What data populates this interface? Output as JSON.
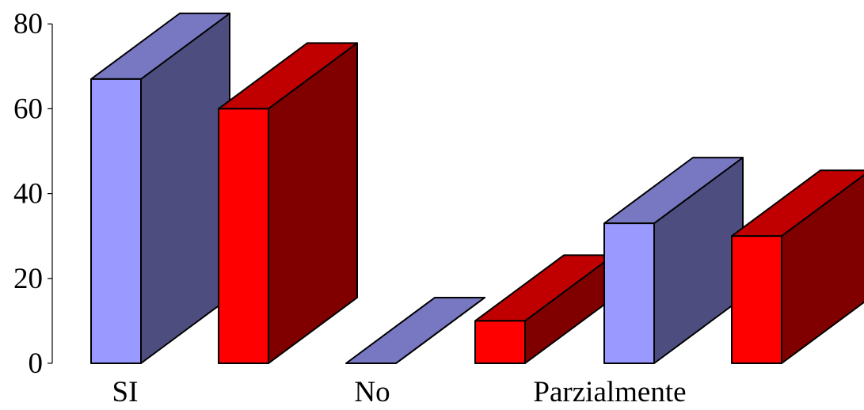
{
  "chart_data": {
    "type": "bar",
    "style": "3d-clustered-column",
    "categories": [
      "SI",
      "No",
      "Parzialmente"
    ],
    "series": [
      {
        "values": [
          67,
          0,
          33
        ],
        "color": "#9999ff",
        "side_color": "#4d4d80",
        "top_color": "#7777c2"
      },
      {
        "values": [
          60,
          10,
          30
        ],
        "color": "#ff0000",
        "side_color": "#800000",
        "top_color": "#c00000"
      }
    ],
    "y_ticks": [
      "0",
      "20",
      "40",
      "60",
      "80"
    ],
    "ylim": [
      0,
      80
    ],
    "grid": false,
    "legend": "none"
  }
}
